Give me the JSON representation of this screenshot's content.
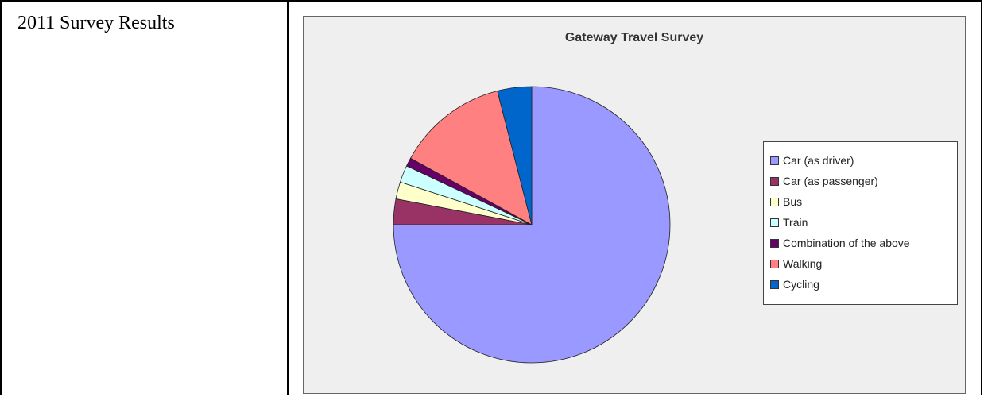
{
  "left_cell": {
    "title": "2011 Survey Results"
  },
  "chart_data": {
    "type": "pie",
    "title": "Gateway Travel Survey",
    "categories": [
      "Car (as driver)",
      "Car (as passenger)",
      "Bus",
      "Train",
      "Combination of the above",
      "Walking",
      "Cycling"
    ],
    "values": [
      75,
      3,
      2,
      2,
      1,
      13,
      4
    ],
    "colors": [
      "#9999ff",
      "#993366",
      "#ffffcc",
      "#ccffff",
      "#660066",
      "#ff8080",
      "#0066cc"
    ],
    "legend_position": "right"
  }
}
